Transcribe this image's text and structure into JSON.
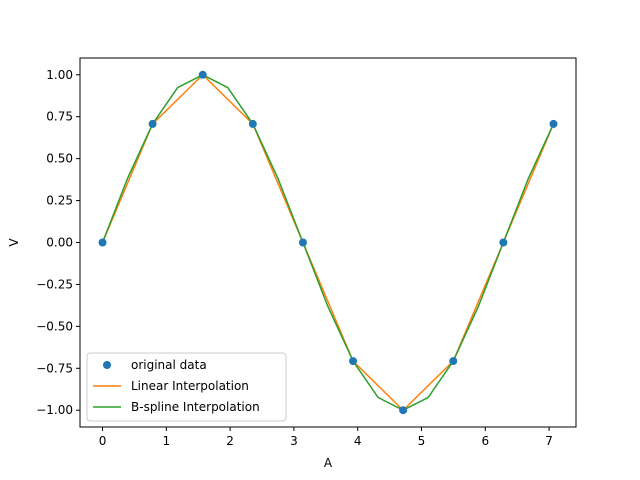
{
  "chart_data": {
    "type": "line",
    "title": "",
    "xlabel": "A",
    "ylabel": "V",
    "xlim": [
      -0.353,
      7.422
    ],
    "ylim": [
      -1.1,
      1.1
    ],
    "xticks": [
      0,
      1,
      2,
      3,
      4,
      5,
      6,
      7
    ],
    "yticks": [
      -1.0,
      -0.75,
      -0.5,
      -0.25,
      0.0,
      0.25,
      0.5,
      0.75,
      1.0
    ],
    "ytick_labels": [
      "−1.00",
      "−0.75",
      "−0.50",
      "−0.25",
      "0.00",
      "0.25",
      "0.50",
      "0.75",
      "1.00"
    ],
    "xtick_labels": [
      "0",
      "1",
      "2",
      "3",
      "4",
      "5",
      "6",
      "7"
    ],
    "grid": false,
    "legend_position": "lower-left",
    "series": [
      {
        "name": "original data",
        "kind": "scatter",
        "color": "#1f77b4",
        "x": [
          0,
          0.785,
          1.571,
          2.356,
          3.142,
          3.927,
          4.712,
          5.498,
          6.283,
          7.069
        ],
        "y": [
          0.0,
          0.707,
          1.0,
          0.707,
          0.0,
          -0.707,
          -1.0,
          -0.707,
          0.0,
          0.707
        ]
      },
      {
        "name": "Linear Interpolation",
        "kind": "line",
        "color": "#ff7f0e",
        "x": [
          0,
          0.785,
          1.571,
          2.356,
          3.142,
          3.927,
          4.712,
          5.498,
          6.283,
          7.069
        ],
        "y": [
          0.0,
          0.707,
          1.0,
          0.707,
          0.0,
          -0.707,
          -1.0,
          -0.707,
          0.0,
          0.707
        ]
      },
      {
        "name": "B-spline Interpolation",
        "kind": "line",
        "color": "#2ca02c",
        "x": [
          0,
          0.393,
          0.785,
          1.178,
          1.571,
          1.963,
          2.356,
          2.749,
          3.142,
          3.534,
          3.927,
          4.32,
          4.712,
          5.105,
          5.498,
          5.89,
          6.283,
          6.676,
          7.069
        ],
        "y": [
          0.0,
          0.383,
          0.707,
          0.924,
          1.0,
          0.924,
          0.707,
          0.383,
          0.0,
          -0.383,
          -0.707,
          -0.924,
          -1.0,
          -0.924,
          -0.707,
          -0.383,
          0.0,
          0.383,
          0.707
        ]
      }
    ]
  }
}
